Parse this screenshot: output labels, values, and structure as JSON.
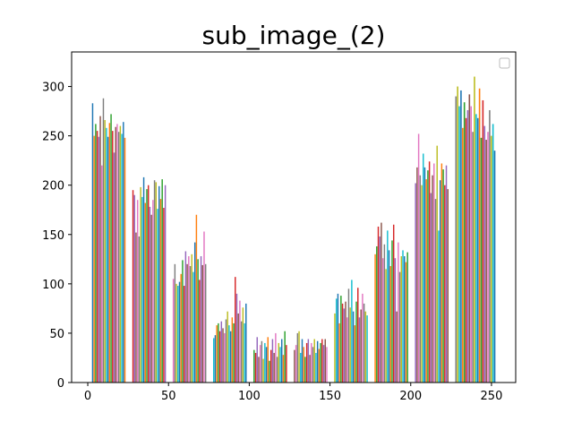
{
  "chart_data": {
    "type": "bar",
    "title": "sub_image_(2)",
    "xlabel": "",
    "ylabel": "",
    "xlim": [
      -10,
      265
    ],
    "ylim": [
      0,
      335
    ],
    "xticks": [
      0,
      50,
      100,
      150,
      200,
      250
    ],
    "yticks": [
      0,
      50,
      100,
      150,
      200,
      250,
      300
    ],
    "legend": {
      "placement": "upper right",
      "entries": []
    },
    "grid": false,
    "palette": [
      "#1f77b4",
      "#ff7f0e",
      "#2ca02c",
      "#d62728",
      "#9467bd",
      "#8c564b",
      "#e377c2",
      "#7f7f7f",
      "#bcbd22",
      "#17becf"
    ],
    "groups": [
      {
        "x_range": [
          3,
          23
        ],
        "values": [
          283,
          250,
          262,
          255,
          249,
          270,
          220,
          288,
          266,
          258,
          249,
          263,
          272,
          255,
          233,
          259,
          262,
          254,
          260,
          252,
          264,
          248
        ]
      },
      {
        "x_range": [
          28,
          48
        ],
        "values": [
          195,
          190,
          152,
          185,
          148,
          198,
          188,
          208,
          182,
          196,
          200,
          178,
          170,
          185,
          205,
          203,
          176,
          199,
          186,
          206,
          177,
          200
        ]
      },
      {
        "x_range": [
          53,
          73
        ],
        "values": [
          105,
          120,
          100,
          98,
          102,
          110,
          124,
          98,
          133,
          120,
          128,
          118,
          130,
          112,
          142,
          170,
          125,
          104,
          128,
          119,
          153,
          120
        ]
      },
      {
        "x_range": [
          78,
          98
        ],
        "values": [
          45,
          48,
          58,
          60,
          52,
          62,
          55,
          50,
          64,
          72,
          58,
          52,
          66,
          60,
          107,
          90,
          70,
          83,
          62,
          76,
          60,
          80
        ]
      },
      {
        "x_range": [
          103,
          123
        ],
        "values": [
          33,
          30,
          46,
          26,
          38,
          42,
          24,
          40,
          36,
          46,
          22,
          33,
          44,
          30,
          50,
          26,
          40,
          36,
          44,
          28,
          52,
          38
        ]
      },
      {
        "x_range": [
          128,
          148
        ],
        "values": [
          33,
          38,
          50,
          52,
          30,
          44,
          36,
          26,
          40,
          44,
          28,
          40,
          36,
          44,
          30,
          42,
          34,
          40,
          44,
          38,
          44,
          36
        ]
      },
      {
        "x_range": [
          153,
          173
        ],
        "values": [
          70,
          85,
          90,
          60,
          88,
          80,
          75,
          82,
          66,
          95,
          76,
          104,
          72,
          58,
          82,
          96,
          66,
          74,
          90,
          80,
          72,
          68
        ]
      },
      {
        "x_range": [
          178,
          198
        ],
        "values": [
          130,
          138,
          158,
          148,
          162,
          126,
          140,
          115,
          154,
          134,
          118,
          144,
          160,
          126,
          72,
          142,
          112,
          128,
          134,
          128,
          122,
          132
        ]
      },
      {
        "x_range": [
          203,
          223
        ],
        "values": [
          202,
          218,
          252,
          210,
          200,
          232,
          218,
          206,
          215,
          224,
          192,
          210,
          222,
          186,
          240,
          154,
          205,
          222,
          216,
          200,
          220,
          196
        ]
      },
      {
        "x_range": [
          228,
          252
        ],
        "values": [
          290,
          300,
          280,
          296,
          258,
          284,
          268,
          276,
          292,
          280,
          254,
          310,
          272,
          268,
          298,
          248,
          286,
          260,
          246,
          254,
          276,
          250,
          262,
          235
        ]
      }
    ]
  },
  "icons": {
    "legend-box": "empty-legend-box"
  }
}
